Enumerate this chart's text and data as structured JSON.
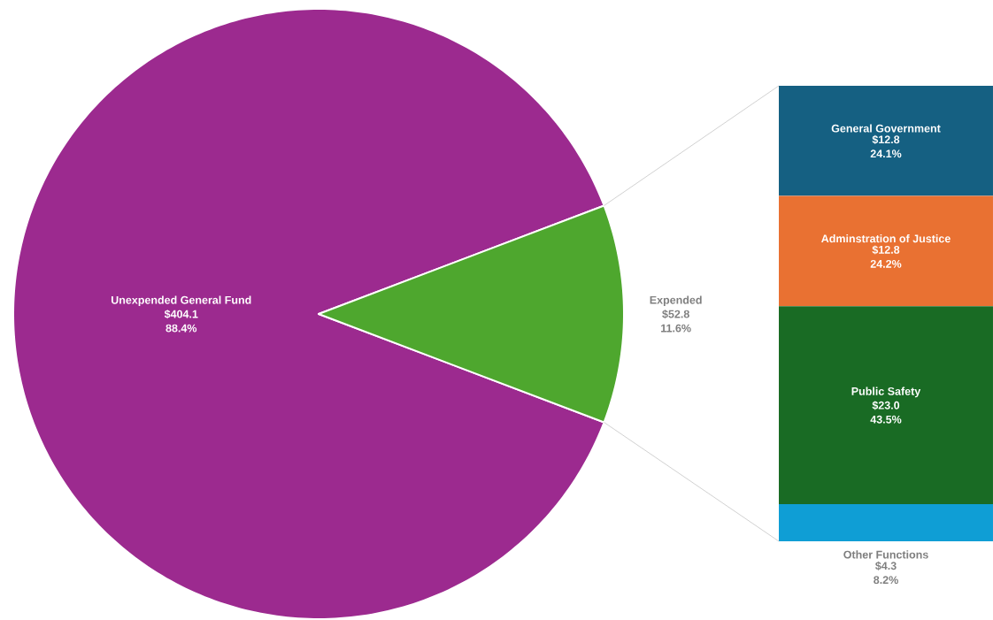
{
  "chart_data": [
    {
      "type": "pie",
      "categories": [
        "Unexpended General Fund",
        "Expended"
      ],
      "values": [
        404.1,
        52.8
      ],
      "colors": [
        "#9c2a8f",
        "#4ea72e"
      ],
      "value_labels": [
        "$404.1 88.4%",
        "$52.8 11.6%"
      ]
    },
    {
      "type": "bar",
      "stacked": true,
      "categories": [
        null
      ],
      "series": [
        {
          "name": "Other Functions",
          "color": "#0f9ed5",
          "values": [
            4.3
          ],
          "value_labels": [
            "$4.3 8.2%"
          ]
        },
        {
          "name": "Public Safety",
          "color": "#196b24",
          "values": [
            23.0
          ],
          "value_labels": [
            "$23.0 43.5%"
          ]
        },
        {
          "name": "Adminstration of Justice",
          "color": "#e97132",
          "values": [
            12.8
          ],
          "value_labels": [
            "$12.8 24.2%"
          ]
        },
        {
          "name": "General Government",
          "color": "#156082",
          "values": [
            12.8
          ],
          "value_labels": [
            "$12.8 24.1%"
          ]
        }
      ]
    }
  ]
}
